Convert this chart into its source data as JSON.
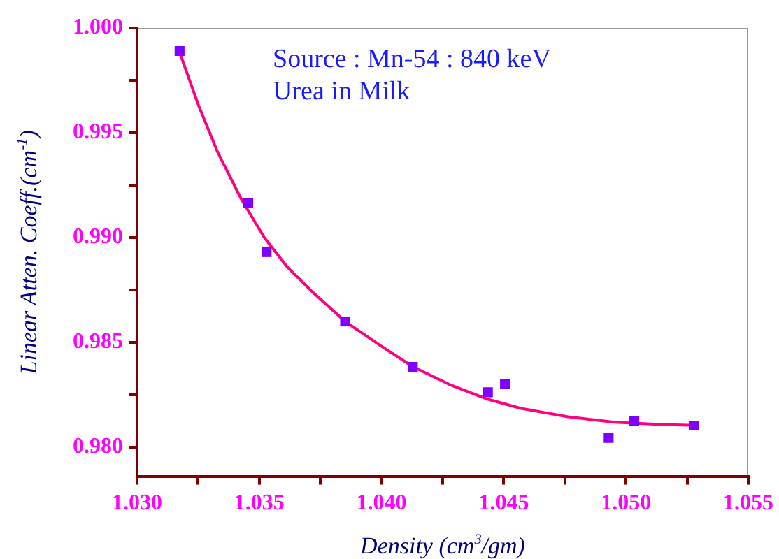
{
  "chart_data": {
    "type": "scatter",
    "xlabel": "Density (cm$^{3}$/gm)",
    "ylabel": "Linear Atten. Coeff.(cm$^{-1}$)",
    "annotations": [
      "Source : Mn-54 : 840 keV",
      "Urea in Milk"
    ],
    "x": [
      1.03174,
      1.03455,
      1.0353,
      1.03851,
      1.04128,
      1.04435,
      1.04505,
      1.04929,
      1.05034,
      1.05279
    ],
    "series": [
      {
        "color": "#7f00ff",
        "marker": "square",
        "values": [
          0.9989,
          0.99166,
          0.9893,
          0.98599,
          0.98382,
          0.98261,
          0.98301,
          0.98043,
          0.98122,
          0.98102
        ]
      },
      {
        "type": "line",
        "color": "#ff0080",
        "marker": "none",
        "line_style": "solid",
        "x": [
          1.03172,
          1.03252,
          1.03329,
          1.03424,
          1.0352,
          1.03616,
          1.03711,
          1.03851,
          1.03998,
          1.04128,
          1.04284,
          1.04434,
          1.04571,
          1.04763,
          1.04954,
          1.05145,
          1.05279
        ],
        "values": [
          0.9989,
          0.99629,
          0.99409,
          0.99188,
          0.99,
          0.98857,
          0.98747,
          0.98599,
          0.98482,
          0.98383,
          0.98295,
          0.98228,
          0.98184,
          0.98144,
          0.98118,
          0.98107,
          0.98103
        ]
      }
    ],
    "xlim": [
      1.03,
      1.055
    ],
    "xticks": [
      {
        "value": 1.03,
        "label": "1.030"
      },
      {
        "value": 1.0325,
        "label": null
      },
      {
        "value": 1.035,
        "label": "1.035"
      },
      {
        "value": 1.0375,
        "label": null
      },
      {
        "value": 1.04,
        "label": "1.040"
      },
      {
        "value": 1.0425,
        "label": null
      },
      {
        "value": 1.045,
        "label": "1.045"
      },
      {
        "value": 1.0475,
        "label": null
      },
      {
        "value": 1.05,
        "label": "1.050"
      },
      {
        "value": 1.0525,
        "label": null
      },
      {
        "value": 1.055,
        "label": "1.055"
      }
    ],
    "ylim": [
      0.9786,
      1.0
    ],
    "yticks": [
      {
        "value": 0.98,
        "label": "0.980"
      },
      {
        "value": 0.9825,
        "label": null
      },
      {
        "value": 0.985,
        "label": "0.985"
      },
      {
        "value": 0.9875,
        "label": null
      },
      {
        "value": 0.99,
        "label": "0.990"
      },
      {
        "value": 0.9925,
        "label": null
      },
      {
        "value": 0.995,
        "label": "0.995"
      },
      {
        "value": 0.9975,
        "label": null
      },
      {
        "value": 1.0,
        "label": "1.000"
      }
    ],
    "grid": false,
    "legend": false
  }
}
